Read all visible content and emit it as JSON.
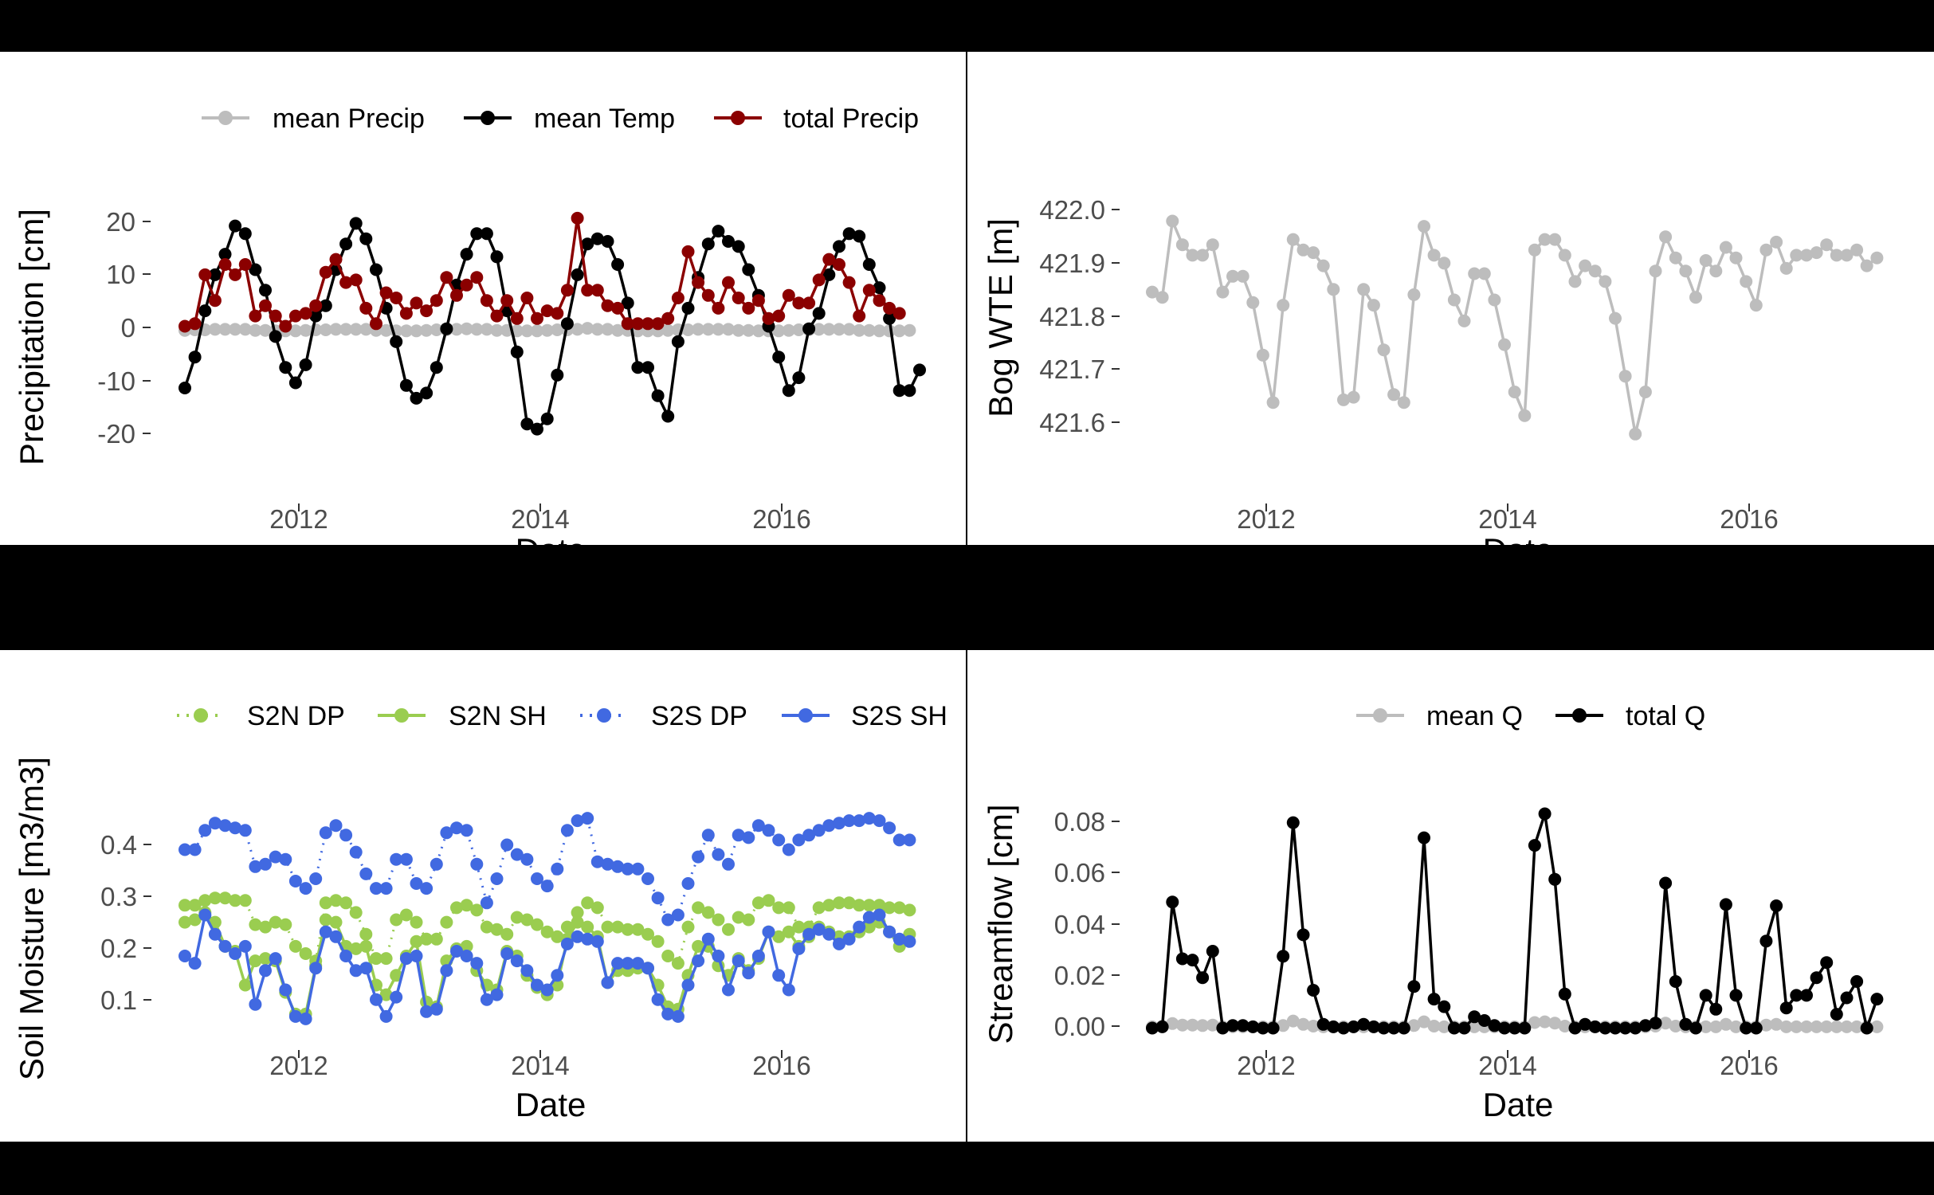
{
  "chart_data": [
    {
      "type": "line",
      "xlabel": "Date",
      "ylabel": "Precipitation [cm]",
      "ylim": [
        -22,
        24
      ],
      "yticks": [
        "20",
        "10",
        "0",
        "-10",
        "-20"
      ],
      "xticks": [
        "2012",
        "2014",
        "2016"
      ],
      "grid": false,
      "legend_position": "top",
      "legend": [
        "mean Precip",
        "mean Temp",
        "total Precip"
      ],
      "colors": {
        "mean Precip": "#bdbdbd",
        "mean Temp": "#000000",
        "total Precip": "#8b0000"
      },
      "x_start": "2011-01",
      "series": [
        {
          "name": "mean Precip",
          "values": [
            0.2,
            0.3,
            0.3,
            0.4,
            0.4,
            0.4,
            0.4,
            0.2,
            0.2,
            0.1,
            0.1,
            0.1,
            0.2,
            0.3,
            0.3,
            0.4,
            0.4,
            0.4,
            0.4,
            0.2,
            0.2,
            0.1,
            0.1,
            0.1,
            0.2,
            0.3,
            0.3,
            0.4,
            0.5,
            0.4,
            0.4,
            0.2,
            0.2,
            0.1,
            0.1,
            0.1,
            0.2,
            0.3,
            0.3,
            0.4,
            0.6,
            0.4,
            0.4,
            0.2,
            0.2,
            0.1,
            0.1,
            0.1,
            0.2,
            0.3,
            0.3,
            0.4,
            0.4,
            0.4,
            0.4,
            0.2,
            0.2,
            0.1,
            0.1,
            0.1,
            0.2,
            0.3,
            0.3,
            0.4,
            0.4,
            0.4,
            0.4,
            0.2,
            0.2,
            0.1,
            0.1,
            0.1,
            0.2
          ]
        },
        {
          "name": "mean Temp",
          "values": [
            -11,
            -5,
            4,
            11,
            15,
            20.5,
            19,
            12,
            8,
            -1,
            -7,
            -10,
            -6.5,
            3,
            5,
            12,
            17,
            21,
            18,
            12,
            4.5,
            -2,
            -10.5,
            -13,
            -12,
            -7,
            0.5,
            9,
            15,
            19,
            19,
            14.5,
            4,
            -4,
            -18,
            -19,
            -17,
            -8.5,
            1.5,
            11,
            17,
            18,
            17.5,
            13,
            5.5,
            -7,
            -7,
            -12.5,
            -16.5,
            -2,
            4.5,
            10.5,
            17,
            19.5,
            17.5,
            16.5,
            12,
            7,
            1,
            -5,
            -11.5,
            -9,
            0.5,
            3.5,
            11,
            16.5,
            19,
            18.5,
            13,
            8.5,
            2.5,
            -11.5,
            -11.5,
            -7.5
          ]
        },
        {
          "name": "total Precip",
          "values": [
            1,
            1.5,
            11,
            6,
            13,
            11,
            13,
            3,
            5,
            3,
            1,
            3,
            3.5,
            5,
            11.5,
            14,
            9.5,
            10,
            4.5,
            1.5,
            7.5,
            6.5,
            3.5,
            5.5,
            4,
            6,
            10.5,
            7,
            9,
            10.5,
            6,
            3,
            6,
            2.5,
            6.5,
            2.5,
            4,
            3.5,
            8,
            22,
            8,
            8,
            5,
            4.5,
            1.5,
            1.5,
            1.5,
            1.5,
            2.5,
            6.5,
            15.5,
            9.5,
            7,
            4.5,
            9.5,
            6.5,
            4.5,
            6,
            2.5,
            3,
            7,
            5.5,
            5.5,
            10,
            14,
            13,
            9.5,
            3,
            8,
            6,
            4.5,
            3.5
          ]
        }
      ]
    },
    {
      "type": "line",
      "xlabel": "Date",
      "ylabel": "Bog WTE [m]",
      "ylim": [
        421.57,
        422.02
      ],
      "yticks": [
        "422.0",
        "421.9",
        "421.8",
        "421.7",
        "421.6"
      ],
      "xticks": [
        "2012",
        "2014",
        "2016"
      ],
      "grid": false,
      "colors": {
        "Bog WTE": "#bdbdbd"
      },
      "x_start": "2011-01",
      "series": [
        {
          "values": [
            421.86,
            421.85,
            421.995,
            421.95,
            421.93,
            421.93,
            421.95,
            421.86,
            421.89,
            421.89,
            421.84,
            421.74,
            421.65,
            421.835,
            421.96,
            421.94,
            421.935,
            421.91,
            421.865,
            421.655,
            421.66,
            421.865,
            421.835,
            421.75,
            421.665,
            421.65,
            421.855,
            421.985,
            421.93,
            421.915,
            421.845,
            421.805,
            421.895,
            421.895,
            421.845,
            421.76,
            421.67,
            421.625,
            421.94,
            421.96,
            421.96,
            421.93,
            421.88,
            421.91,
            421.9,
            421.88,
            421.81,
            421.7,
            421.59,
            421.67,
            421.9,
            421.965,
            421.925,
            421.9,
            421.85,
            421.92,
            421.9,
            421.945,
            421.925,
            421.88,
            421.835,
            421.94,
            421.955,
            421.905,
            421.93,
            421.93,
            421.935,
            421.95,
            421.93,
            421.93,
            421.94,
            421.91,
            421.925
          ]
        }
      ]
    },
    {
      "type": "line",
      "xlabel": "Date",
      "ylabel": "Soil Moisture [m3/m3]",
      "ylim": [
        0.04,
        0.48
      ],
      "yticks": [
        "0.4",
        "0.3",
        "0.2",
        "0.1"
      ],
      "xticks": [
        "2012",
        "2014",
        "2016"
      ],
      "grid": false,
      "legend_position": "top",
      "legend": [
        "S2N DP",
        "S2N SH",
        "S2S DP",
        "S2S SH"
      ],
      "colors": {
        "S2N DP": "#9acd50",
        "S2N SH": "#9acd50",
        "S2S DP": "#4169e1",
        "S2S SH": "#4169e1"
      },
      "x_start": "2011-01",
      "series": [
        {
          "name": "S2N DP",
          "values": [
            0.285,
            0.285,
            0.295,
            0.3,
            0.3,
            0.295,
            0.295,
            0.245,
            0.24,
            0.25,
            0.245,
            0.2,
            0.185,
            0.17,
            0.29,
            0.295,
            0.29,
            0.27,
            0.225,
            0.175,
            0.175,
            0.255,
            0.265,
            0.25,
            0.215,
            0.215,
            0.25,
            0.28,
            0.285,
            0.275,
            0.24,
            0.235,
            0.225,
            0.26,
            0.255,
            0.245,
            0.23,
            0.22,
            0.24,
            0.27,
            0.29,
            0.28,
            0.24,
            0.24,
            0.235,
            0.235,
            0.225,
            0.21,
            0.18,
            0.165,
            0.24,
            0.28,
            0.27,
            0.255,
            0.235,
            0.26,
            0.255,
            0.29,
            0.295,
            0.28,
            0.28,
            0.24,
            0.24,
            0.28,
            0.285,
            0.29,
            0.29,
            0.285,
            0.285,
            0.285,
            0.28,
            0.28,
            0.275
          ]
        },
        {
          "name": "S2N SH",
          "values": [
            0.25,
            0.255,
            0.27,
            0.25,
            0.2,
            0.19,
            0.12,
            0.17,
            0.175,
            0.17,
            0.105,
            0.06,
            0.06,
            0.16,
            0.255,
            0.25,
            0.2,
            0.195,
            0.2,
            0.12,
            0.1,
            0.14,
            0.18,
            0.21,
            0.085,
            0.075,
            0.17,
            0.195,
            0.2,
            0.15,
            0.12,
            0.11,
            0.19,
            0.18,
            0.14,
            0.115,
            0.1,
            0.12,
            0.215,
            0.25,
            0.24,
            0.22,
            0.125,
            0.15,
            0.15,
            0.155,
            0.155,
            0.12,
            0.075,
            0.07,
            0.14,
            0.2,
            0.2,
            0.16,
            0.14,
            0.175,
            0.15,
            0.175,
            0.23,
            0.22,
            0.23,
            0.2,
            0.22,
            0.24,
            0.23,
            0.22,
            0.22,
            0.23,
            0.24,
            0.25,
            0.23,
            0.2,
            0.225
          ]
        },
        {
          "name": "S2S DP",
          "values": [
            0.4,
            0.4,
            0.44,
            0.455,
            0.45,
            0.445,
            0.44,
            0.365,
            0.37,
            0.385,
            0.38,
            0.335,
            0.32,
            0.34,
            0.435,
            0.45,
            0.43,
            0.395,
            0.35,
            0.32,
            0.32,
            0.38,
            0.38,
            0.33,
            0.32,
            0.37,
            0.435,
            0.445,
            0.44,
            0.37,
            0.29,
            0.34,
            0.41,
            0.39,
            0.38,
            0.34,
            0.325,
            0.36,
            0.44,
            0.46,
            0.465,
            0.375,
            0.37,
            0.365,
            0.36,
            0.36,
            0.34,
            0.3,
            0.255,
            0.265,
            0.33,
            0.385,
            0.43,
            0.39,
            0.37,
            0.43,
            0.425,
            0.45,
            0.44,
            0.42,
            0.4,
            0.42,
            0.43,
            0.44,
            0.45,
            0.455,
            0.46,
            0.46,
            0.465,
            0.46,
            0.445,
            0.42,
            0.42
          ]
        },
        {
          "name": "S2S SH",
          "values": [
            0.18,
            0.165,
            0.265,
            0.225,
            0.2,
            0.185,
            0.2,
            0.08,
            0.15,
            0.175,
            0.11,
            0.055,
            0.05,
            0.155,
            0.23,
            0.22,
            0.18,
            0.15,
            0.155,
            0.09,
            0.055,
            0.095,
            0.175,
            0.18,
            0.065,
            0.07,
            0.15,
            0.19,
            0.18,
            0.165,
            0.09,
            0.1,
            0.185,
            0.17,
            0.15,
            0.12,
            0.11,
            0.14,
            0.205,
            0.22,
            0.215,
            0.21,
            0.125,
            0.165,
            0.165,
            0.165,
            0.155,
            0.09,
            0.06,
            0.055,
            0.12,
            0.17,
            0.215,
            0.18,
            0.11,
            0.17,
            0.145,
            0.18,
            0.23,
            0.14,
            0.11,
            0.195,
            0.225,
            0.235,
            0.225,
            0.205,
            0.215,
            0.24,
            0.26,
            0.265,
            0.23,
            0.215,
            0.21
          ]
        }
      ]
    },
    {
      "type": "line",
      "xlabel": "Date",
      "ylabel": "Streamflow [cm]",
      "ylim": [
        -0.003,
        0.088
      ],
      "yticks": [
        "0.08",
        "0.06",
        "0.04",
        "0.02",
        "0.00"
      ],
      "xticks": [
        "2012",
        "2014",
        "2016"
      ],
      "grid": false,
      "legend_position": "top",
      "legend": [
        "mean Q",
        "total Q"
      ],
      "colors": {
        "mean Q": "#bdbdbd",
        "total Q": "#000000"
      },
      "x_start": "2011-01",
      "series": [
        {
          "name": "mean Q",
          "values": [
            0.0005,
            0.0008,
            0.0018,
            0.0012,
            0.0012,
            0.001,
            0.0012,
            0.0005,
            0.0005,
            0.0005,
            0.0005,
            0.0005,
            0.0005,
            0.001,
            0.0028,
            0.0015,
            0.0008,
            0.0005,
            0.0005,
            0.0005,
            0.0005,
            0.0005,
            0.0005,
            0.0005,
            0.0005,
            0.0005,
            0.001,
            0.0025,
            0.0008,
            0.0005,
            0.0005,
            0.0005,
            0.0005,
            0.0005,
            0.0005,
            0.0005,
            0.0005,
            0.0005,
            0.0022,
            0.0025,
            0.002,
            0.0008,
            0.0005,
            0.0005,
            0.0005,
            0.0005,
            0.0005,
            0.0005,
            0.0005,
            0.0005,
            0.0008,
            0.002,
            0.0008,
            0.0005,
            0.0005,
            0.0005,
            0.0005,
            0.0015,
            0.0005,
            0.0005,
            0.0005,
            0.0012,
            0.0015,
            0.0005,
            0.0005,
            0.0005,
            0.0005,
            0.0005,
            0.0005,
            0.0005,
            0.0005,
            0.0005,
            0.0005
          ]
        },
        {
          "name": "total Q",
          "values": [
            0,
            0.0005,
            0.05,
            0.0275,
            0.027,
            0.02,
            0.0305,
            0,
            0.001,
            0.001,
            0.0005,
            0,
            0,
            0.0285,
            0.0815,
            0.037,
            0.015,
            0.0015,
            0.0005,
            0,
            0.0005,
            0.0015,
            0.0005,
            0,
            0,
            0,
            0.0165,
            0.0755,
            0.0115,
            0.0085,
            0,
            0,
            0.0045,
            0.003,
            0.001,
            0,
            0,
            0,
            0.0725,
            0.085,
            0.059,
            0.0135,
            0,
            0.0015,
            0.0005,
            0,
            0,
            0,
            0,
            0.001,
            0.002,
            0.0575,
            0.0185,
            0.0015,
            0,
            0.013,
            0.0075,
            0.049,
            0.013,
            0,
            0,
            0.0345,
            0.0485,
            0.008,
            0.013,
            0.013,
            0.02,
            0.026,
            0.0055,
            0.012,
            0.0185,
            0,
            0.0115
          ]
        }
      ]
    }
  ]
}
